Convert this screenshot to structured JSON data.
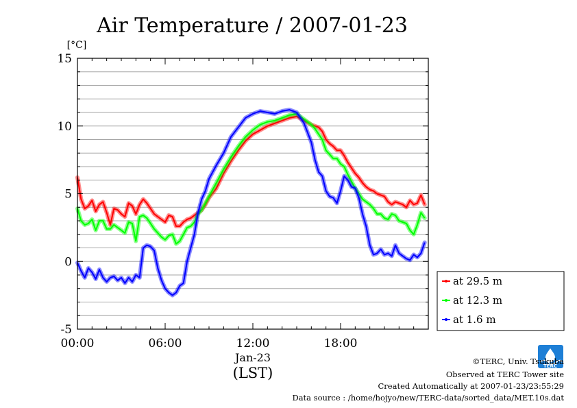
{
  "chart_data": {
    "type": "line",
    "title": "Air Temperature / 2007-01-23",
    "ylabel": "[°C]",
    "xlabel": "(LST)",
    "date_label": "Jan-23",
    "ylim": [
      -5,
      15
    ],
    "xlim": [
      0,
      24
    ],
    "yticks": [
      -5,
      0,
      5,
      10,
      15
    ],
    "ytick_labels": [
      "-5",
      "0",
      "5",
      "10",
      "15"
    ],
    "xticks": [
      0,
      6,
      12,
      18
    ],
    "xtick_labels": [
      "00:00",
      "06:00",
      "12:00",
      "18:00"
    ],
    "grid": true,
    "legend_position": "right",
    "series": [
      {
        "name": "at 29.5 m",
        "color": "#ff0000",
        "x": [
          0,
          0.25,
          0.5,
          0.75,
          1,
          1.25,
          1.5,
          1.75,
          2,
          2.25,
          2.5,
          2.75,
          3,
          3.25,
          3.5,
          3.75,
          4,
          4.25,
          4.5,
          4.75,
          5,
          5.25,
          5.5,
          5.75,
          6,
          6.25,
          6.5,
          6.75,
          7,
          7.25,
          7.5,
          7.75,
          8,
          8.25,
          8.5,
          8.75,
          9,
          9.5,
          10,
          10.5,
          11,
          11.5,
          12,
          12.5,
          13,
          13.5,
          14,
          14.5,
          15,
          15.5,
          16,
          16.25,
          16.5,
          16.75,
          17,
          17.25,
          17.5,
          17.75,
          18,
          18.25,
          18.5,
          18.75,
          19,
          19.25,
          19.5,
          19.75,
          20,
          20.25,
          20.5,
          20.75,
          21,
          21.25,
          21.5,
          21.75,
          22,
          22.25,
          22.5,
          22.75,
          23,
          23.25,
          23.5,
          23.75
        ],
        "y": [
          6.2,
          4.6,
          3.9,
          4.1,
          4.5,
          3.7,
          4.2,
          4.4,
          3.6,
          2.7,
          3.9,
          3.8,
          3.5,
          3.3,
          4.3,
          4.1,
          3.5,
          4.2,
          4.6,
          4.3,
          3.9,
          3.5,
          3.3,
          3.1,
          2.9,
          3.4,
          3.3,
          2.6,
          2.6,
          2.9,
          3.1,
          3.2,
          3.4,
          3.6,
          3.8,
          4.2,
          4.7,
          5.4,
          6.5,
          7.4,
          8.2,
          8.9,
          9.4,
          9.7,
          10.0,
          10.2,
          10.4,
          10.6,
          10.7,
          10.4,
          10.1,
          10.0,
          9.9,
          9.6,
          9.0,
          8.7,
          8.5,
          8.2,
          8.2,
          7.8,
          7.3,
          6.9,
          6.5,
          6.2,
          5.8,
          5.5,
          5.3,
          5.2,
          5.0,
          4.9,
          4.8,
          4.4,
          4.2,
          4.4,
          4.3,
          4.2,
          4.0,
          4.5,
          4.2,
          4.3,
          4.9,
          4.2
        ]
      },
      {
        "name": "at 12.3 m",
        "color": "#00ff00",
        "x": [
          0,
          0.25,
          0.5,
          0.75,
          1,
          1.25,
          1.5,
          1.75,
          2,
          2.25,
          2.5,
          2.75,
          3,
          3.25,
          3.5,
          3.75,
          4,
          4.25,
          4.5,
          4.75,
          5,
          5.25,
          5.5,
          5.75,
          6,
          6.25,
          6.5,
          6.75,
          7,
          7.25,
          7.5,
          7.75,
          8,
          8.25,
          8.5,
          8.75,
          9,
          9.5,
          10,
          10.5,
          11,
          11.5,
          12,
          12.5,
          13,
          13.5,
          14,
          14.5,
          15,
          15.5,
          16,
          16.25,
          16.5,
          16.75,
          17,
          17.25,
          17.5,
          17.75,
          18,
          18.25,
          18.5,
          18.75,
          19,
          19.25,
          19.5,
          19.75,
          20,
          20.25,
          20.5,
          20.75,
          21,
          21.25,
          21.5,
          21.75,
          22,
          22.25,
          22.5,
          22.75,
          23,
          23.25,
          23.5,
          23.75
        ],
        "y": [
          3.9,
          3.0,
          2.7,
          2.8,
          3.1,
          2.3,
          3.0,
          3.0,
          2.4,
          2.4,
          2.7,
          2.5,
          2.3,
          2.1,
          2.9,
          2.8,
          1.5,
          3.3,
          3.4,
          3.2,
          2.8,
          2.4,
          2.1,
          1.8,
          1.6,
          1.9,
          2.0,
          1.3,
          1.5,
          2.0,
          2.5,
          2.6,
          2.9,
          3.5,
          3.8,
          4.3,
          4.8,
          5.8,
          6.8,
          7.7,
          8.5,
          9.2,
          9.7,
          10.1,
          10.3,
          10.4,
          10.6,
          10.8,
          10.9,
          10.5,
          10.1,
          9.8,
          9.4,
          9.0,
          8.2,
          7.9,
          7.6,
          7.6,
          7.2,
          7.0,
          6.4,
          5.9,
          5.4,
          5.0,
          4.6,
          4.4,
          4.2,
          3.9,
          3.5,
          3.5,
          3.2,
          3.1,
          3.5,
          3.4,
          3.0,
          2.9,
          2.8,
          2.3,
          2.0,
          2.7,
          3.6,
          3.2
        ]
      },
      {
        "name": "at 1.6 m",
        "color": "#0000ff",
        "x": [
          0,
          0.25,
          0.5,
          0.75,
          1,
          1.25,
          1.5,
          1.75,
          2,
          2.25,
          2.5,
          2.75,
          3,
          3.25,
          3.5,
          3.75,
          4,
          4.25,
          4.5,
          4.75,
          5,
          5.25,
          5.5,
          5.75,
          6,
          6.25,
          6.5,
          6.75,
          7,
          7.25,
          7.5,
          7.75,
          8,
          8.25,
          8.5,
          8.75,
          9,
          9.5,
          10,
          10.5,
          11,
          11.5,
          12,
          12.5,
          13,
          13.5,
          14,
          14.5,
          15,
          15.5,
          16,
          16.25,
          16.5,
          16.75,
          17,
          17.25,
          17.5,
          17.75,
          18,
          18.25,
          18.5,
          18.75,
          19,
          19.25,
          19.5,
          19.75,
          20,
          20.25,
          20.5,
          20.75,
          21,
          21.25,
          21.5,
          21.75,
          22,
          22.25,
          22.5,
          22.75,
          23,
          23.25,
          23.5,
          23.75
        ],
        "y": [
          -0.1,
          -0.7,
          -1.2,
          -0.5,
          -0.8,
          -1.3,
          -0.6,
          -1.2,
          -1.5,
          -1.2,
          -1.1,
          -1.4,
          -1.2,
          -1.6,
          -1.2,
          -1.5,
          -1.0,
          -1.2,
          1.0,
          1.2,
          1.1,
          0.8,
          -0.5,
          -1.4,
          -2.0,
          -2.3,
          -2.5,
          -2.3,
          -1.8,
          -1.6,
          0.0,
          1.0,
          2.0,
          3.6,
          4.6,
          5.2,
          6.1,
          7.1,
          8.0,
          9.2,
          9.9,
          10.6,
          10.9,
          11.1,
          11.0,
          10.9,
          11.1,
          11.2,
          11.0,
          10.2,
          8.8,
          7.5,
          6.6,
          6.3,
          5.2,
          4.8,
          4.7,
          4.3,
          5.2,
          6.3,
          6.0,
          5.5,
          5.4,
          4.7,
          3.5,
          2.6,
          1.2,
          0.5,
          0.6,
          0.9,
          0.5,
          0.6,
          0.4,
          1.2,
          0.6,
          0.4,
          0.2,
          0.1,
          0.5,
          0.3,
          0.6,
          1.4
        ]
      }
    ]
  },
  "credits": {
    "copyright": "©TERC, Univ. Tsukuba",
    "site": "Observed at TERC Tower site",
    "created": "Created Automatically at 2007-01-23/23:55:29",
    "source": "Data source : /home/hojyo/new/TERC-data/sorted_data/MET.10s.dat"
  },
  "logo": {
    "text": "TERC",
    "color": "#1e7fd6"
  }
}
